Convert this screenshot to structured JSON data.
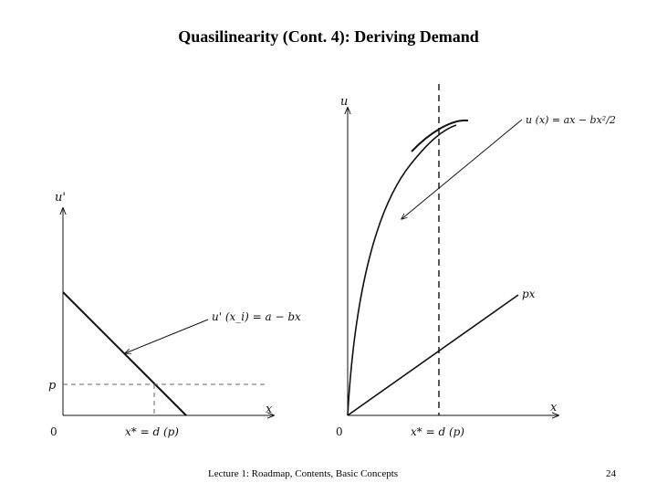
{
  "slide": {
    "title": "Quasilinearity (Cont. 4): Deriving Demand",
    "footer": "Lecture 1: Roadmap, Contents, Basic Concepts",
    "page_number": "24"
  },
  "left_chart": {
    "y_axis_label": "u'",
    "x_axis_label": "x",
    "origin_label": "0",
    "price_label": "p",
    "quantity_label": "x* = d (p)",
    "curve_label": "u' (x_i) = a − bx"
  },
  "right_chart": {
    "y_axis_label": "u",
    "x_axis_label": "x",
    "origin_label": "0",
    "quantity_label": "x* = d (p)",
    "utility_label": "u (x) = ax − bx²/2",
    "line_label": "px"
  }
}
